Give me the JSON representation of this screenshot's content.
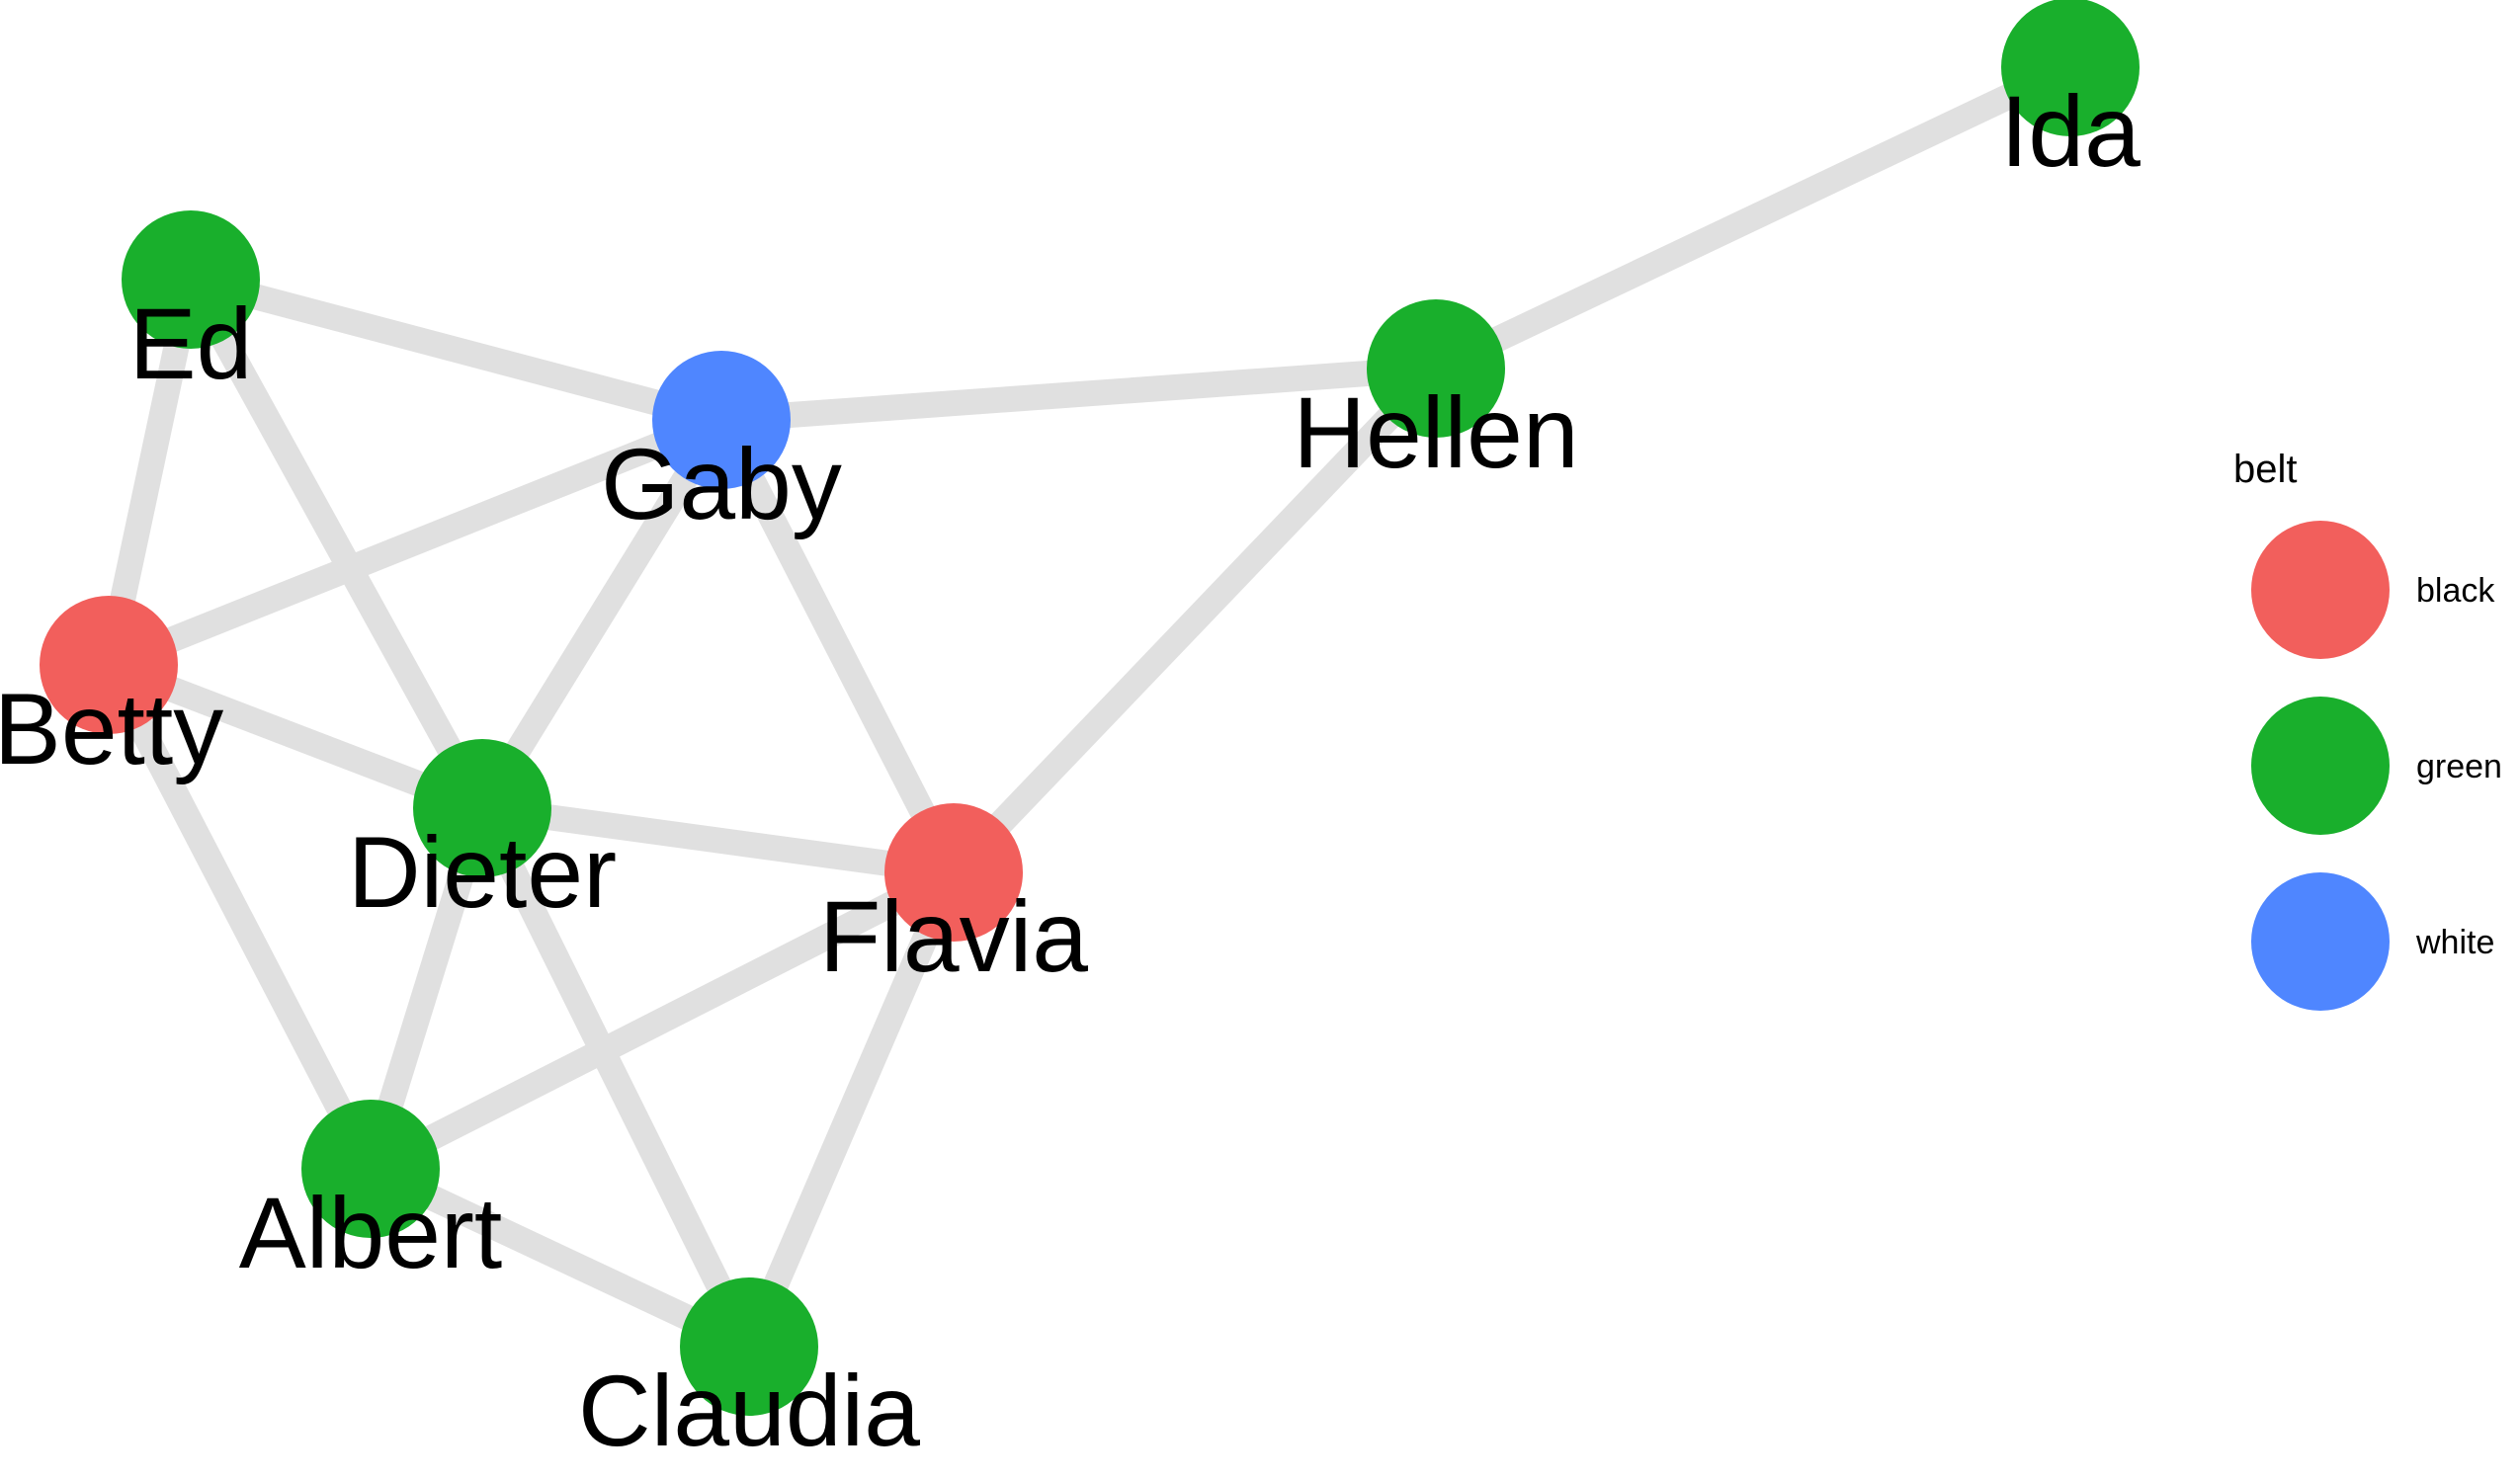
{
  "graph": {
    "nodes": [
      {
        "id": "Ida",
        "label": "Ida",
        "belt": "green"
      },
      {
        "id": "Ed",
        "label": "Ed",
        "belt": "green"
      },
      {
        "id": "Hellen",
        "label": "Hellen",
        "belt": "green"
      },
      {
        "id": "Gaby",
        "label": "Gaby",
        "belt": "white"
      },
      {
        "id": "Betty",
        "label": "Betty",
        "belt": "black"
      },
      {
        "id": "Dieter",
        "label": "Dieter",
        "belt": "green"
      },
      {
        "id": "Flavia",
        "label": "Flavia",
        "belt": "black"
      },
      {
        "id": "Albert",
        "label": "Albert",
        "belt": "green"
      },
      {
        "id": "Claudia",
        "label": "Claudia",
        "belt": "green"
      }
    ],
    "edges": [
      [
        "Ida",
        "Hellen"
      ],
      [
        "Hellen",
        "Gaby"
      ],
      [
        "Hellen",
        "Flavia"
      ],
      [
        "Ed",
        "Gaby"
      ],
      [
        "Ed",
        "Betty"
      ],
      [
        "Ed",
        "Dieter"
      ],
      [
        "Gaby",
        "Betty"
      ],
      [
        "Gaby",
        "Dieter"
      ],
      [
        "Gaby",
        "Flavia"
      ],
      [
        "Betty",
        "Dieter"
      ],
      [
        "Betty",
        "Albert"
      ],
      [
        "Dieter",
        "Flavia"
      ],
      [
        "Dieter",
        "Albert"
      ],
      [
        "Dieter",
        "Claudia"
      ],
      [
        "Flavia",
        "Albert"
      ],
      [
        "Flavia",
        "Claudia"
      ],
      [
        "Albert",
        "Claudia"
      ]
    ]
  },
  "legend": {
    "title": "belt",
    "items": [
      {
        "key": "black",
        "label": "black",
        "color": "#F25F5C"
      },
      {
        "key": "green",
        "label": "green",
        "color": "#19AF2C"
      },
      {
        "key": "white",
        "label": "white",
        "color": "#4F86FF"
      }
    ]
  },
  "colors": {
    "edge": "#E0E0E0",
    "black": "#F25F5C",
    "green": "#19AF2C",
    "white": "#4F86FF"
  }
}
